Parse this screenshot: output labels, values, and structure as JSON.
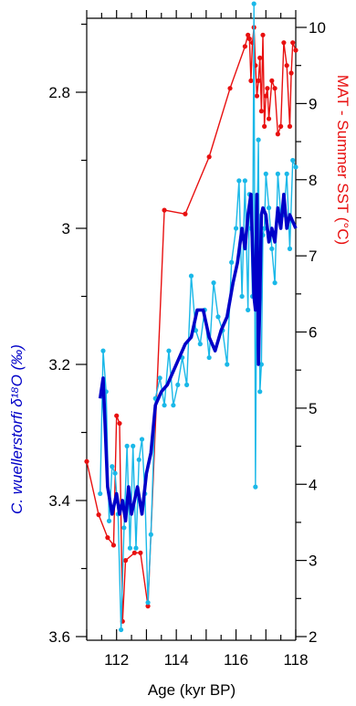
{
  "chart_data": {
    "type": "line",
    "xlabel": "Age (kyr BP)",
    "ylabel_left": "C. wuellerstorfi δ¹⁸O (‰)",
    "ylabel_right": "MAT - Summer SST (°C)",
    "xlim": [
      111,
      118
    ],
    "ylim_left": [
      3.6,
      2.67
    ],
    "ylim_right": [
      2,
      10
    ],
    "x_ticks": [
      112,
      114,
      116,
      118
    ],
    "y_ticks_left": [
      2.8,
      3,
      3.2,
      3.4,
      3.6
    ],
    "y_ticks_left_labels": [
      "2.8",
      "3",
      "3.2",
      "3.4",
      "3.6"
    ],
    "y_ticks_right": [
      2,
      3,
      4,
      5,
      6,
      7,
      8,
      9,
      10
    ],
    "grid": false,
    "colors": {
      "isotope": "#1ab8e8",
      "smooth": "#0000c8",
      "sst": "#e81010"
    },
    "series": [
      {
        "axis": "right",
        "color": "#e81010",
        "style": "line-markers",
        "x": [
          111.0,
          111.4,
          111.7,
          111.9,
          112.0,
          112.1,
          112.2,
          112.3,
          112.6,
          112.8,
          113.05,
          113.6,
          114.3,
          115.1,
          115.8,
          116.3,
          116.4,
          116.45,
          116.5,
          116.55,
          116.6,
          116.65,
          116.7,
          116.75,
          116.8,
          116.85,
          116.9,
          116.95,
          117.0,
          117.05,
          117.1,
          117.2,
          117.3,
          117.4,
          117.5,
          117.6,
          117.7,
          117.8,
          117.85,
          117.9,
          118.0
        ],
        "values": [
          4.3,
          3.6,
          3.3,
          3.2,
          4.9,
          4.8,
          2.2,
          3.0,
          3.1,
          3.1,
          2.4,
          7.6,
          7.55,
          8.3,
          9.2,
          9.75,
          9.9,
          9.85,
          9.3,
          9.8,
          10.0,
          9.5,
          9.1,
          9.3,
          9.6,
          8.9,
          9.9,
          8.7,
          9.1,
          9.2,
          8.8,
          9.3,
          9.2,
          8.6,
          8.7,
          9.8,
          9.5,
          8.7,
          9.4,
          9.8,
          9.7
        ]
      },
      {
        "axis": "left",
        "color": "#1ab8e8",
        "style": "line-markers",
        "x": [
          111.45,
          111.55,
          111.65,
          111.75,
          111.85,
          111.95,
          112.05,
          112.15,
          112.25,
          112.35,
          112.45,
          112.55,
          112.65,
          112.75,
          112.85,
          112.95,
          113.05,
          113.15,
          113.3,
          113.45,
          113.6,
          113.75,
          113.9,
          114.05,
          114.2,
          114.35,
          114.5,
          114.65,
          114.8,
          114.95,
          115.1,
          115.25,
          115.4,
          115.55,
          115.7,
          115.85,
          116.0,
          116.1,
          116.2,
          116.3,
          116.4,
          116.45,
          116.5,
          116.55,
          116.6,
          116.65,
          116.7,
          116.75,
          116.8,
          116.85,
          116.9,
          116.95,
          117.0,
          117.1,
          117.2,
          117.3,
          117.4,
          117.5,
          117.6,
          117.7,
          117.8,
          117.9,
          118.0
        ],
        "values": [
          3.39,
          3.18,
          3.24,
          3.43,
          3.35,
          3.36,
          3.42,
          3.59,
          3.44,
          3.32,
          3.47,
          3.32,
          3.47,
          3.34,
          3.31,
          3.39,
          3.55,
          3.45,
          3.25,
          3.22,
          3.26,
          3.18,
          3.26,
          3.23,
          3.19,
          3.23,
          3.07,
          3.15,
          3.17,
          3.12,
          3.19,
          3.08,
          3.13,
          3.15,
          3.2,
          3.05,
          3.0,
          2.93,
          3.1,
          2.93,
          3.12,
          2.95,
          3.0,
          3.1,
          2.67,
          3.38,
          3.01,
          2.87,
          3.24,
          3.2,
          3.01,
          3.0,
          2.92,
          2.97,
          3.03,
          3.08,
          2.92,
          2.98,
          2.98,
          2.92,
          3.03,
          2.9,
          2.91
        ]
      },
      {
        "axis": "left",
        "color": "#0000c8",
        "style": "thick-line",
        "x": [
          111.45,
          111.55,
          111.7,
          111.85,
          112.0,
          112.1,
          112.2,
          112.3,
          112.4,
          112.5,
          112.6,
          112.7,
          112.85,
          113.0,
          113.15,
          113.3,
          113.5,
          113.7,
          113.9,
          114.1,
          114.3,
          114.5,
          114.7,
          114.9,
          115.1,
          115.3,
          115.5,
          115.7,
          115.9,
          116.05,
          116.2,
          116.3,
          116.4,
          116.5,
          116.6,
          116.65,
          116.7,
          116.75,
          116.8,
          116.85,
          116.9,
          117.0,
          117.1,
          117.2,
          117.3,
          117.4,
          117.5,
          117.6,
          117.7,
          117.8,
          117.9,
          118.0
        ],
        "values": [
          3.25,
          3.22,
          3.38,
          3.42,
          3.39,
          3.42,
          3.4,
          3.43,
          3.38,
          3.42,
          3.4,
          3.38,
          3.42,
          3.36,
          3.33,
          3.26,
          3.24,
          3.23,
          3.21,
          3.19,
          3.17,
          3.16,
          3.12,
          3.12,
          3.16,
          3.18,
          3.15,
          3.13,
          3.08,
          3.05,
          3.0,
          3.03,
          2.98,
          2.95,
          3.1,
          3.12,
          2.95,
          3.2,
          3.1,
          2.98,
          2.97,
          2.98,
          3.02,
          3.0,
          3.02,
          2.97,
          3.0,
          2.95,
          3.0,
          2.98,
          2.99,
          3.0
        ]
      }
    ]
  }
}
